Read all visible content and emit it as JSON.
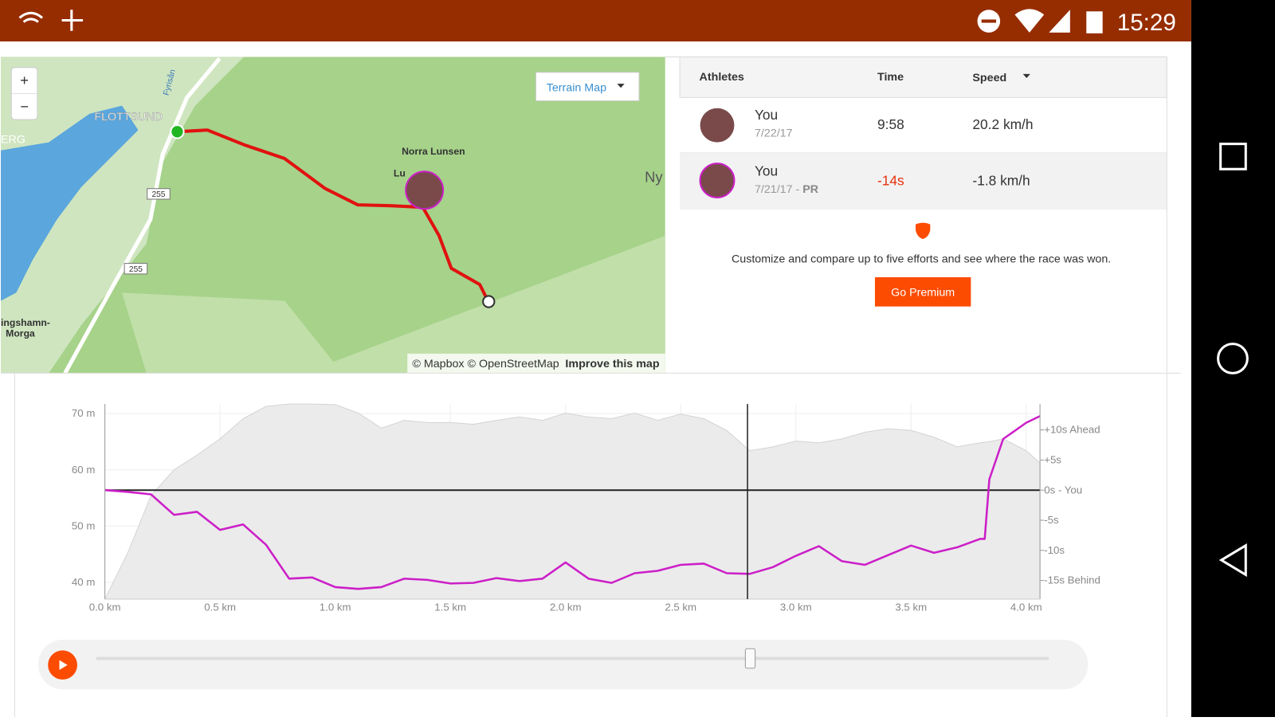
{
  "status_bar": {
    "time": "15:29"
  },
  "map": {
    "zoom_in": "+",
    "zoom_out": "−",
    "style_button": "Terrain Map",
    "labels": {
      "town": "FLOTTSUND",
      "area": "Norra Lunsen",
      "west": "ERG",
      "east": "Ny",
      "river": "Fyrisån",
      "road_a": "255",
      "road_b": "255",
      "village_1": "ingshamn-",
      "village_2": "Morga",
      "partial": "Lu"
    },
    "attribution": "© Mapbox © OpenStreetMap",
    "improve": "Improve this map"
  },
  "leaderboard": {
    "headers": [
      "Athletes",
      "Time",
      "Speed"
    ],
    "rows": [
      {
        "name": "You",
        "date": "7/22/17",
        "time": "9:58",
        "speed": "20.2 km/h"
      },
      {
        "name": "You",
        "date": "7/21/17",
        "separator": "-",
        "badge": "PR",
        "time": "-14s",
        "speed": "-1.8 km/h"
      }
    ],
    "promo": "Customize and compare up to five efforts and see where the race was won.",
    "button": "Go Premium"
  },
  "chart": {
    "type": "area-line",
    "x": [
      0,
      0.1,
      0.2,
      0.3,
      0.4,
      0.5,
      0.6,
      0.7,
      0.8,
      0.9,
      1.0,
      1.1,
      1.2,
      1.3,
      1.4,
      1.5,
      1.6,
      1.7,
      1.8,
      1.9,
      2.0,
      2.1,
      2.2,
      2.3,
      2.4,
      2.5,
      2.6,
      2.7,
      2.8,
      2.9,
      3.0,
      3.1,
      3.2,
      3.3,
      3.4,
      3.5,
      3.6,
      3.7,
      3.8,
      3.82,
      3.84,
      3.9,
      4.0,
      4.06
    ],
    "elevation": [
      37,
      45.3,
      55.4,
      60,
      62.6,
      65.5,
      69.1,
      71.3,
      71.7,
      71.7,
      71.6,
      70.1,
      67.4,
      68.8,
      68.4,
      68.4,
      68.1,
      68.8,
      69.4,
      68.8,
      70.1,
      69.4,
      69.1,
      70.1,
      68.8,
      69.9,
      69.1,
      67,
      63.4,
      64.1,
      65.1,
      64.8,
      65.5,
      66.7,
      67.3,
      67,
      65.8,
      64.1,
      64.8,
      64.9,
      65,
      65.5,
      63.4,
      61.2
    ],
    "delta": [
      0,
      -0.3,
      -0.7,
      -4.1,
      -3.6,
      -6.6,
      -5.7,
      -9.1,
      -14.7,
      -14.5,
      -16.1,
      -16.4,
      -16.1,
      -14.7,
      -14.9,
      -15.5,
      -15.4,
      -14.6,
      -15.1,
      -14.7,
      -12,
      -14.7,
      -15.4,
      -13.8,
      -13.4,
      -12.4,
      -12.2,
      -13.8,
      -13.9,
      -12.8,
      -10.9,
      -9.3,
      -11.8,
      -12.4,
      -10.8,
      -9.2,
      -10.4,
      -9.5,
      -8.1,
      -8.1,
      1.8,
      8.5,
      11.2,
      12.3
    ],
    "elevation_color": "#ebebeb",
    "delta_color": "#cc1fc8",
    "xlim": [
      0,
      4.06
    ],
    "ylim": [
      37,
      71.7
    ],
    "y2lim": [
      -18.1,
      14.3
    ],
    "xticks": [
      {
        "value": 0,
        "label": "0.0 km"
      },
      {
        "value": 0.5,
        "label": "0.5 km"
      },
      {
        "value": 1,
        "label": "1.0 km"
      },
      {
        "value": 1.5,
        "label": "1.5 km"
      },
      {
        "value": 2,
        "label": "2.0 km"
      },
      {
        "value": 2.5,
        "label": "2.5 km"
      },
      {
        "value": 3,
        "label": "3.0 km"
      },
      {
        "value": 3.5,
        "label": "3.5 km"
      },
      {
        "value": 4,
        "label": "4.0 km"
      }
    ],
    "yticks": [
      {
        "value": 40,
        "label": "40 m"
      },
      {
        "value": 50,
        "label": "50 m"
      },
      {
        "value": 60,
        "label": "60 m"
      },
      {
        "value": 70,
        "label": "70 m"
      }
    ],
    "y2ticks": [
      {
        "value": 10,
        "label": "+10s Ahead"
      },
      {
        "value": 5,
        "label": "+5s"
      },
      {
        "value": 0,
        "label": "0s - You"
      },
      {
        "value": -5,
        "label": "-5s"
      },
      {
        "value": -10,
        "label": "-10s"
      },
      {
        "value": -15,
        "label": "-15s Behind"
      }
    ],
    "grid": true,
    "cursor_x": 2.79
  }
}
